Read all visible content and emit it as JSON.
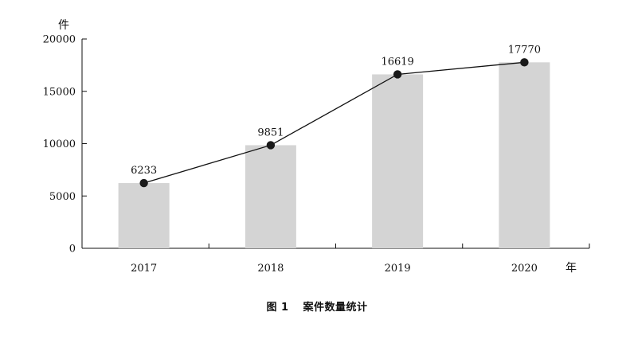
{
  "chart_data": {
    "type": "bar",
    "categories": [
      "2017",
      "2018",
      "2019",
      "2020"
    ],
    "values": [
      6233,
      9851,
      16619,
      17770
    ],
    "line_overlay": true,
    "data_labels": [
      "6233",
      "9851",
      "16619",
      "17770"
    ],
    "ylabel": "件",
    "xlabel": "年",
    "ylim": [
      0,
      20000
    ],
    "yticks": [
      0,
      5000,
      10000,
      15000,
      20000
    ],
    "ytick_labels": [
      "0",
      "5000",
      "10000",
      "15000",
      "20000"
    ],
    "grid": false,
    "legend": "none",
    "bar_color": "#d4d4d4",
    "line_color": "#111111",
    "marker_color": "#1a1a1a"
  },
  "caption": {
    "figure_number": "图 1",
    "title": "案件数量统计"
  }
}
